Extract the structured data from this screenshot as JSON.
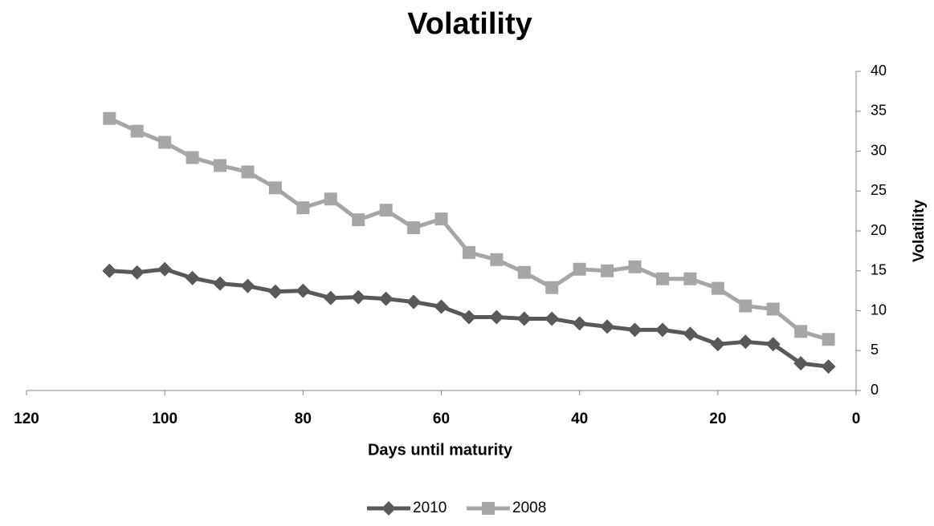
{
  "chart_data": {
    "type": "line",
    "title": "Volatility",
    "x_label": "Days until maturity",
    "y_label": "Volatility",
    "x": [
      108,
      104,
      100,
      96,
      92,
      88,
      84,
      80,
      76,
      72,
      68,
      64,
      60,
      56,
      52,
      48,
      44,
      40,
      36,
      32,
      28,
      24,
      20,
      16,
      12,
      8,
      4
    ],
    "series": [
      {
        "name": "2010",
        "color": "#595959",
        "marker": "diamond",
        "values": [
          15.0,
          14.8,
          15.2,
          14.1,
          13.4,
          13.1,
          12.4,
          12.5,
          11.6,
          11.7,
          11.5,
          11.1,
          10.5,
          9.2,
          9.2,
          9.0,
          9.0,
          8.4,
          8.0,
          7.6,
          7.6,
          7.1,
          5.8,
          6.1,
          5.8,
          3.4,
          3.0
        ]
      },
      {
        "name": "2008",
        "color": "#a6a6a6",
        "marker": "square",
        "values": [
          34.1,
          32.5,
          31.1,
          29.2,
          28.2,
          27.4,
          25.4,
          22.9,
          24.0,
          21.4,
          22.6,
          20.4,
          21.5,
          17.3,
          16.4,
          14.8,
          12.9,
          15.2,
          15.0,
          15.5,
          14.0,
          14.0,
          12.8,
          10.6,
          10.2,
          7.4,
          6.4
        ]
      }
    ],
    "xlim": [
      0,
      120
    ],
    "xticks": [
      0,
      20,
      40,
      60,
      80,
      100,
      120
    ],
    "x_reversed": true,
    "ylim": [
      0,
      40
    ],
    "yticks": [
      0,
      5,
      10,
      15,
      20,
      25,
      30,
      35,
      40
    ],
    "y_axis_side": "right",
    "grid": false,
    "legend_position": "bottom"
  }
}
